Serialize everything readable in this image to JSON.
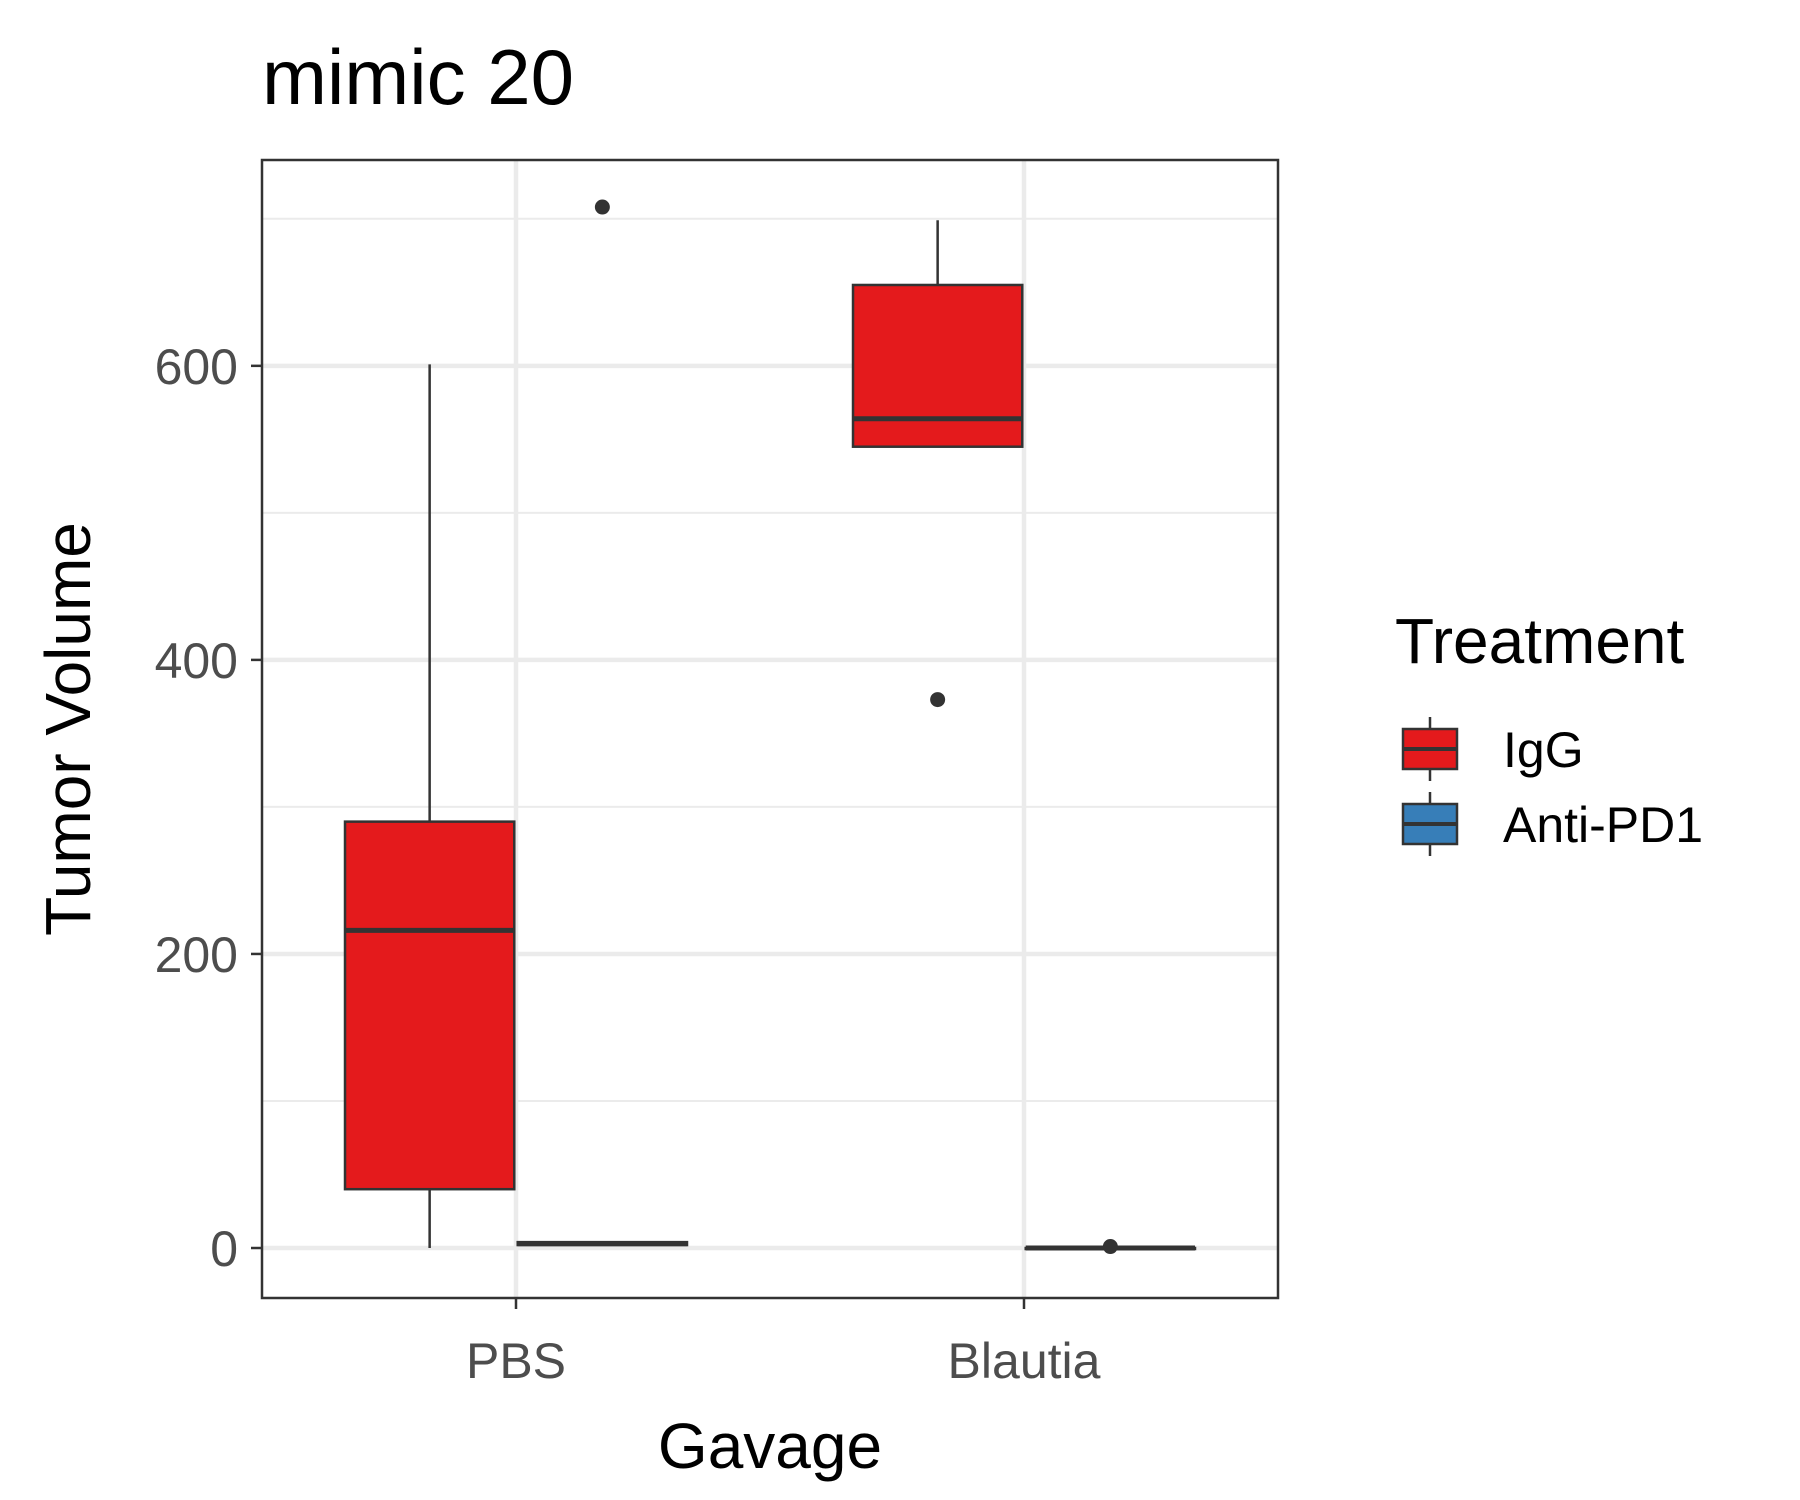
{
  "chart_data": {
    "type": "box",
    "title": "mimic 20",
    "xlabel": "Gavage",
    "ylabel": "Tumor Volume",
    "categories": [
      "PBS",
      "Blautia"
    ],
    "ylim": [
      -34,
      740
    ],
    "yticks": [
      0,
      200,
      400,
      600
    ],
    "grid": true,
    "legend_position": "right",
    "legend_title": "Treatment",
    "series": [
      {
        "name": "IgG",
        "color": "#e41a1c",
        "boxes": [
          {
            "category": "PBS",
            "min": 0,
            "q1": 40,
            "median": 216,
            "q3": 290,
            "max": 601,
            "outliers": []
          },
          {
            "category": "Blautia",
            "min": 545,
            "q1": 545,
            "median": 564,
            "q3": 655,
            "max": 699,
            "outliers": [
              373
            ]
          }
        ]
      },
      {
        "name": "Anti-PD1",
        "color": "#377eb8",
        "boxes": [
          {
            "category": "PBS",
            "min": 2,
            "q1": 2,
            "median": 3,
            "q3": 4,
            "max": 4,
            "outliers": [
              708
            ]
          },
          {
            "category": "Blautia",
            "min": 0,
            "q1": 0,
            "median": 0,
            "q3": 0,
            "max": 1,
            "outliers": [
              1
            ]
          }
        ]
      }
    ]
  }
}
